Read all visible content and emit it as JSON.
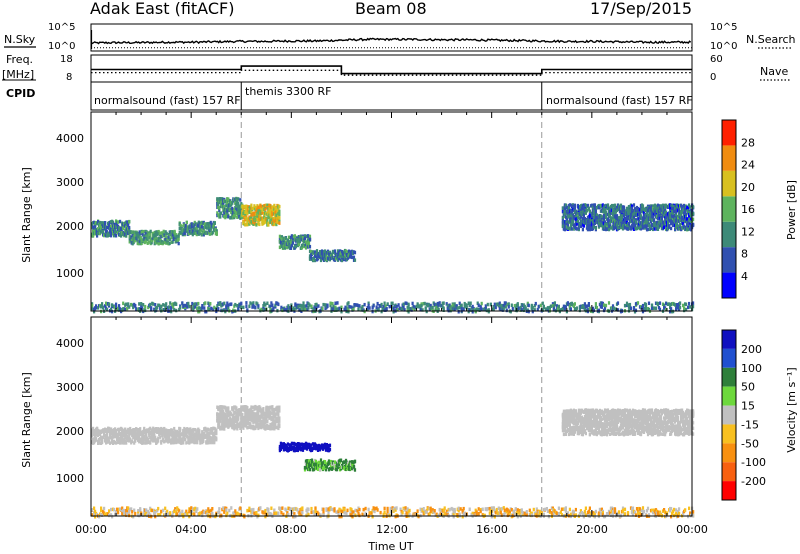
{
  "header": {
    "title": "Adak East (fitACF)",
    "beam": "Beam 08",
    "date": "17/Sep/2015"
  },
  "left_labels": {
    "nsky": "N.Sky",
    "freq_line1": "Freq.",
    "freq_line2": "[MHz]",
    "cpid": "CPID"
  },
  "right_labels": {
    "nsearch": "N.Search",
    "nave": "Nave"
  },
  "chart_data": [
    {
      "type": "line",
      "panel": "noise",
      "y_scale": "log",
      "y_ticks_left": [
        "10^5",
        "10^0"
      ],
      "y_ticks_right": [
        "10^5",
        "10^0"
      ],
      "series": [
        {
          "name": "N.Sky",
          "x": [
            0,
            1,
            2,
            3,
            4,
            5,
            6,
            7,
            8,
            9,
            10,
            11,
            12,
            13,
            14,
            15,
            16,
            17,
            18,
            19,
            20,
            21,
            22,
            23,
            24
          ],
          "values": [
            1.5,
            1.6,
            1.6,
            1.7,
            1.7,
            1.8,
            1.9,
            1.9,
            2.0,
            2.0,
            2.2,
            2.4,
            2.4,
            2.4,
            2.3,
            2.3,
            2.2,
            2.1,
            2.0,
            1.9,
            1.9,
            1.8,
            1.7,
            1.7,
            1.7
          ]
        },
        {
          "name": "N.Search",
          "x": [
            0,
            24
          ],
          "values": [
            0.3,
            0.3
          ]
        }
      ]
    },
    {
      "type": "line",
      "panel": "frequency",
      "y_ticks_left": [
        "18",
        "8"
      ],
      "y_ticks_right": [
        "60",
        "0"
      ],
      "series": [
        {
          "name": "Freq.",
          "x": [
            0,
            6,
            6,
            10,
            10,
            18,
            18,
            24
          ],
          "values": [
            13,
            13,
            15,
            15,
            10.6,
            10.6,
            13,
            13
          ]
        },
        {
          "name": "Nave",
          "x": [
            0,
            6,
            6,
            10,
            10,
            18,
            18,
            24
          ],
          "values": [
            19,
            19,
            27,
            27,
            10,
            10,
            19,
            19
          ]
        }
      ]
    },
    {
      "type": "table",
      "panel": "cpid",
      "segments": [
        {
          "start": 0,
          "end": 6,
          "label": "normalsound (fast) 157 RF"
        },
        {
          "start": 6,
          "end": 18,
          "label": "themis 3300 RF"
        },
        {
          "start": 18,
          "end": 24,
          "label": "normalsound (fast) 157 RF"
        }
      ]
    },
    {
      "type": "heatmap",
      "panel": "power",
      "ylabel": "Slant Range [km]",
      "ylim": [
        180,
        4600
      ],
      "yticks": [
        "1000",
        "2000",
        "3000",
        "4000"
      ],
      "colorbar_label": "Power [dB]",
      "colorbar_ticks": [
        "4",
        "8",
        "12",
        "16",
        "20",
        "24",
        "28"
      ],
      "colorbar_range": [
        0,
        32
      ],
      "colors": [
        "#0000ff",
        "#3050b0",
        "#3d8a78",
        "#5eb35e",
        "#d8c020",
        "#f08c10",
        "#ff2000"
      ],
      "echo_regions": [
        {
          "t_start": 0.0,
          "t_end": 1.5,
          "r_center": 2050,
          "r_width": 300,
          "power": 11
        },
        {
          "t_start": 1.5,
          "t_end": 3.5,
          "r_center": 1850,
          "r_width": 250,
          "power": 13
        },
        {
          "t_start": 3.5,
          "t_end": 5.0,
          "r_center": 2050,
          "r_width": 250,
          "power": 12
        },
        {
          "t_start": 5.0,
          "t_end": 6.0,
          "r_center": 2500,
          "r_width": 400,
          "power": 12
        },
        {
          "t_start": 6.0,
          "t_end": 7.5,
          "r_center": 2350,
          "r_width": 400,
          "power": 20
        },
        {
          "t_start": 7.5,
          "t_end": 8.7,
          "r_center": 1750,
          "r_width": 250,
          "power": 12
        },
        {
          "t_start": 8.7,
          "t_end": 10.5,
          "r_center": 1450,
          "r_width": 200,
          "power": 10
        },
        {
          "t_start": 18.8,
          "t_end": 24.0,
          "r_center": 2300,
          "r_width": 500,
          "power": 9
        },
        {
          "t_start": 0.0,
          "t_end": 24.0,
          "r_center": 300,
          "r_width": 180,
          "power": 10
        }
      ]
    },
    {
      "type": "heatmap",
      "panel": "velocity",
      "xlabel": "Time UT",
      "ylabel": "Slant Range [km]",
      "ylim": [
        180,
        4600
      ],
      "yticks": [
        "1000",
        "2000",
        "3000",
        "4000"
      ],
      "xticks": [
        "00:00",
        "04:00",
        "08:00",
        "12:00",
        "16:00",
        "20:00",
        "00:00"
      ],
      "xlim": [
        0,
        24
      ],
      "colorbar_label": "Velocity [m s⁻¹]",
      "colorbar_ticks": [
        "200",
        "100",
        "50",
        "15",
        "-15",
        "-50",
        "-100",
        "-200"
      ],
      "colors": [
        "#1010c0",
        "#2050d0",
        "#2e7f3a",
        "#6dd83c",
        "#c0c0c0",
        "#f8c020",
        "#f89010",
        "#f86010",
        "#ff0000"
      ],
      "echo_regions": [
        {
          "t_start": 0.0,
          "t_end": 5.0,
          "r_center": 2000,
          "r_width": 300,
          "velocity": 0
        },
        {
          "t_start": 5.0,
          "t_end": 7.5,
          "r_center": 2400,
          "r_width": 450,
          "velocity": 0
        },
        {
          "t_start": 7.5,
          "t_end": 9.5,
          "r_center": 1750,
          "r_width": 150,
          "velocity": 180
        },
        {
          "t_start": 8.5,
          "t_end": 10.5,
          "r_center": 1350,
          "r_width": 200,
          "velocity": 40
        },
        {
          "t_start": 18.8,
          "t_end": 24.0,
          "r_center": 2300,
          "r_width": 500,
          "velocity": 0
        },
        {
          "t_start": 0.0,
          "t_end": 24.0,
          "r_center": 300,
          "r_width": 180,
          "velocity": -20
        }
      ]
    }
  ]
}
